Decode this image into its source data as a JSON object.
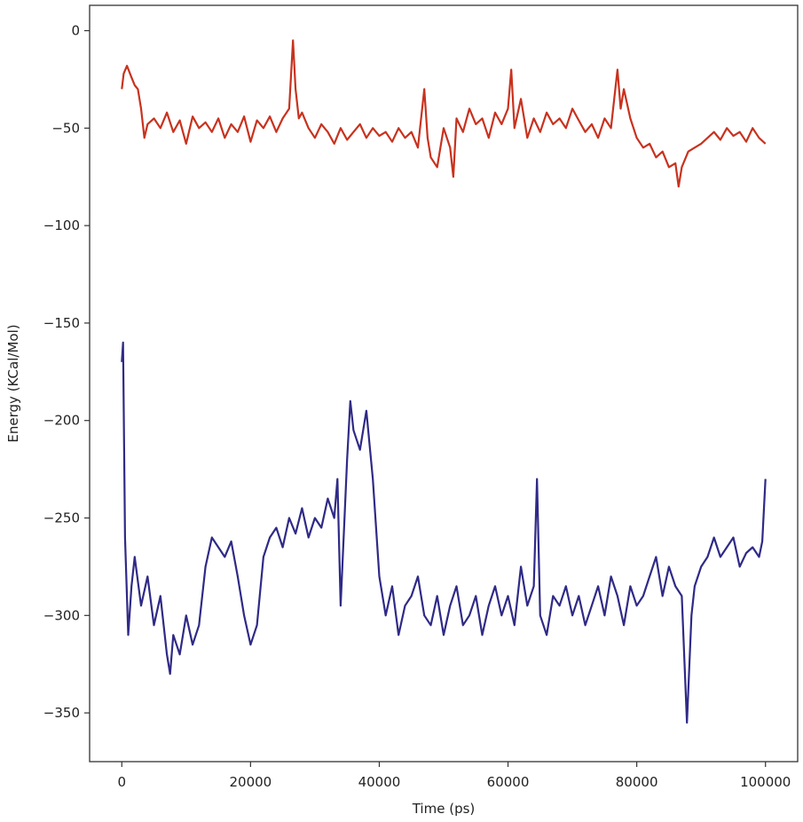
{
  "chart_data": {
    "type": "line",
    "title": "",
    "xlabel": "Time (ps)",
    "ylabel": "Energy (KCal/Mol)",
    "xlim": [
      -5000,
      105000
    ],
    "ylim": [
      -375,
      13
    ],
    "x_ticks": [
      0,
      20000,
      40000,
      60000,
      80000,
      100000
    ],
    "y_ticks": [
      0,
      -50,
      -100,
      -150,
      -200,
      -250,
      -300,
      -350
    ],
    "grid": false,
    "legend": "none",
    "series": [
      {
        "color": "#c8321e",
        "x": [
          0,
          300,
          800,
          1500,
          2000,
          2500,
          3000,
          3500,
          4000,
          5000,
          6000,
          7000,
          8000,
          9000,
          10000,
          11000,
          12000,
          13000,
          14000,
          15000,
          16000,
          17000,
          18000,
          19000,
          20000,
          21000,
          22000,
          23000,
          24000,
          25000,
          26000,
          26600,
          27000,
          27500,
          28000,
          29000,
          30000,
          31000,
          32000,
          33000,
          34000,
          35000,
          36000,
          37000,
          38000,
          39000,
          40000,
          41000,
          42000,
          43000,
          44000,
          45000,
          46000,
          47000,
          47500,
          48000,
          49000,
          50000,
          51000,
          51500,
          52000,
          53000,
          54000,
          55000,
          56000,
          57000,
          58000,
          59000,
          60000,
          60500,
          61000,
          62000,
          63000,
          64000,
          65000,
          66000,
          67000,
          68000,
          69000,
          70000,
          71000,
          72000,
          73000,
          74000,
          75000,
          76000,
          77000,
          77500,
          78000,
          79000,
          80000,
          81000,
          82000,
          83000,
          84000,
          85000,
          86000,
          86500,
          87000,
          88000,
          89000,
          90000,
          91000,
          92000,
          93000,
          94000,
          95000,
          96000,
          97000,
          98000,
          99000,
          100000
        ],
        "y": [
          -30,
          -22,
          -18,
          -24,
          -28,
          -30,
          -40,
          -55,
          -48,
          -45,
          -50,
          -42,
          -52,
          -46,
          -58,
          -44,
          -50,
          -47,
          -52,
          -45,
          -55,
          -48,
          -52,
          -44,
          -57,
          -46,
          -50,
          -44,
          -52,
          -45,
          -40,
          -5,
          -30,
          -45,
          -42,
          -50,
          -55,
          -48,
          -52,
          -58,
          -50,
          -56,
          -52,
          -48,
          -55,
          -50,
          -54,
          -52,
          -57,
          -50,
          -55,
          -52,
          -60,
          -30,
          -55,
          -65,
          -70,
          -50,
          -60,
          -75,
          -45,
          -52,
          -40,
          -48,
          -45,
          -55,
          -42,
          -48,
          -40,
          -20,
          -50,
          -35,
          -55,
          -45,
          -52,
          -42,
          -48,
          -45,
          -50,
          -40,
          -46,
          -52,
          -48,
          -55,
          -45,
          -50,
          -20,
          -40,
          -30,
          -45,
          -55,
          -60,
          -58,
          -65,
          -62,
          -70,
          -68,
          -80,
          -70,
          -62,
          -60,
          -58,
          -55,
          -52,
          -56,
          -50,
          -54,
          -52,
          -57,
          -50,
          -55,
          -58
        ]
      },
      {
        "color": "#2f2a86",
        "x": [
          0,
          200,
          500,
          1000,
          1500,
          2000,
          3000,
          4000,
          5000,
          6000,
          7000,
          7500,
          8000,
          9000,
          10000,
          11000,
          12000,
          13000,
          14000,
          15000,
          16000,
          17000,
          18000,
          19000,
          20000,
          21000,
          22000,
          23000,
          24000,
          25000,
          26000,
          27000,
          28000,
          29000,
          30000,
          31000,
          32000,
          33000,
          33500,
          34000,
          35000,
          35500,
          36000,
          37000,
          38000,
          39000,
          40000,
          41000,
          42000,
          43000,
          44000,
          45000,
          46000,
          47000,
          48000,
          49000,
          50000,
          51000,
          52000,
          53000,
          54000,
          55000,
          56000,
          57000,
          58000,
          59000,
          60000,
          61000,
          62000,
          63000,
          64000,
          64500,
          65000,
          66000,
          67000,
          68000,
          69000,
          70000,
          71000,
          72000,
          73000,
          74000,
          75000,
          76000,
          77000,
          78000,
          79000,
          80000,
          81000,
          82000,
          83000,
          84000,
          85000,
          86000,
          87000,
          87800,
          88500,
          89000,
          90000,
          91000,
          92000,
          93000,
          94000,
          95000,
          96000,
          97000,
          98000,
          99000,
          99500,
          100000
        ],
        "y": [
          -170,
          -160,
          -260,
          -310,
          -285,
          -270,
          -295,
          -280,
          -305,
          -290,
          -320,
          -330,
          -310,
          -320,
          -300,
          -315,
          -305,
          -275,
          -260,
          -265,
          -270,
          -262,
          -280,
          -300,
          -315,
          -305,
          -270,
          -260,
          -255,
          -265,
          -250,
          -258,
          -245,
          -260,
          -250,
          -255,
          -240,
          -250,
          -230,
          -295,
          -220,
          -190,
          -205,
          -215,
          -195,
          -230,
          -280,
          -300,
          -285,
          -310,
          -295,
          -290,
          -280,
          -300,
          -305,
          -290,
          -310,
          -295,
          -285,
          -305,
          -300,
          -290,
          -310,
          -295,
          -285,
          -300,
          -290,
          -305,
          -275,
          -295,
          -285,
          -230,
          -300,
          -310,
          -290,
          -295,
          -285,
          -300,
          -290,
          -305,
          -295,
          -285,
          -300,
          -280,
          -290,
          -305,
          -285,
          -295,
          -290,
          -280,
          -270,
          -290,
          -275,
          -285,
          -290,
          -355,
          -300,
          -285,
          -275,
          -270,
          -260,
          -270,
          -265,
          -260,
          -275,
          -268,
          -265,
          -270,
          -262,
          -230
        ]
      }
    ]
  }
}
